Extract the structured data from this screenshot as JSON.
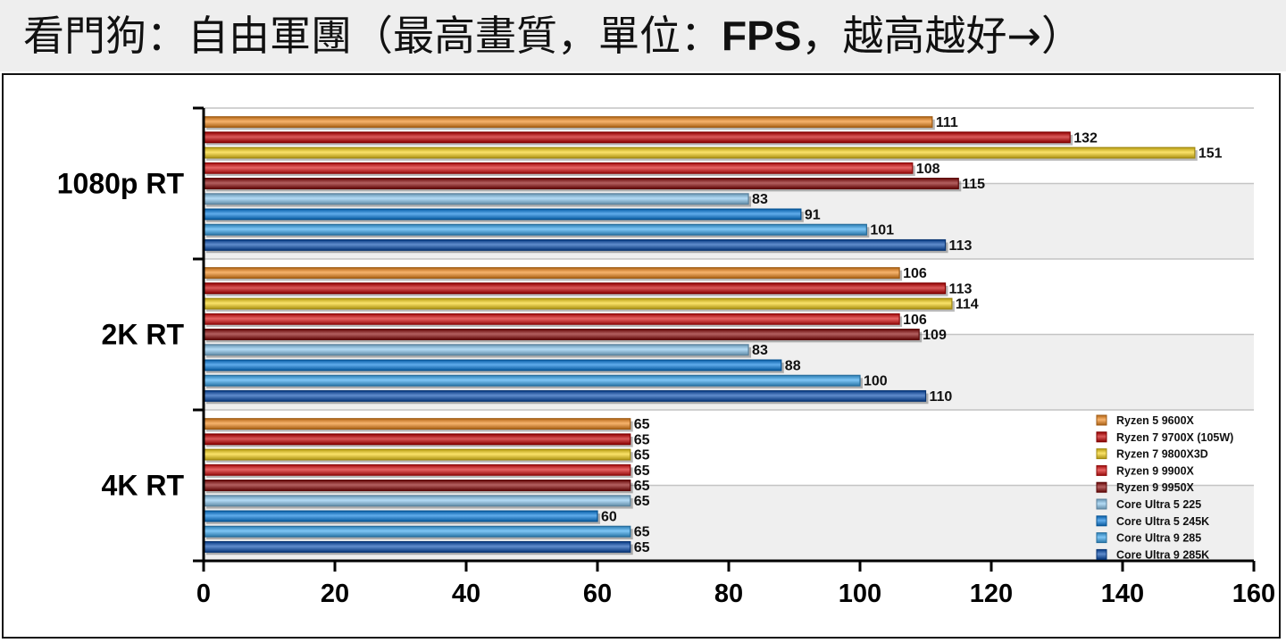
{
  "title": {
    "part1": "看門狗：自由軍團（最高畫質，單位：",
    "bold": "FPS",
    "part2": "，越高越好→）"
  },
  "chart_data": {
    "type": "bar",
    "orientation": "horizontal",
    "title": "看門狗：自由軍團（最高畫質，單位：FPS，越高越好→）",
    "categories": [
      "1080p RT",
      "2K RT",
      "4K RT"
    ],
    "xlim": [
      0,
      160
    ],
    "xticks": [
      0,
      20,
      40,
      60,
      80,
      100,
      120,
      140,
      160
    ],
    "legend_position": "bottom-right",
    "grid": "horizontal bands",
    "series": [
      {
        "name": "Ryzen 5 9600X",
        "color": "#f28a1e",
        "values": [
          111,
          106,
          65
        ]
      },
      {
        "name": "Ryzen 7 9700X (105W)",
        "color": "#c40000",
        "values": [
          132,
          113,
          65
        ]
      },
      {
        "name": "Ryzen 7 9800X3D",
        "color": "#f7d21a",
        "values": [
          151,
          114,
          65
        ]
      },
      {
        "name": "Ryzen 9 9900X",
        "color": "#d81010",
        "values": [
          108,
          106,
          65
        ]
      },
      {
        "name": "Ryzen 9 9950X",
        "color": "#8a0a0a",
        "values": [
          115,
          109,
          65
        ]
      },
      {
        "name": "Core Ultra 5 225",
        "color": "#8cc8f0",
        "values": [
          83,
          83,
          65
        ]
      },
      {
        "name": "Core Ultra 5 245K",
        "color": "#0a7fe0",
        "values": [
          91,
          88,
          60
        ]
      },
      {
        "name": "Core Ultra 9 285",
        "color": "#3aa8f0",
        "values": [
          101,
          100,
          65
        ]
      },
      {
        "name": "Core Ultra 9 285K",
        "color": "#0a4eb0",
        "values": [
          113,
          110,
          65
        ]
      }
    ]
  }
}
